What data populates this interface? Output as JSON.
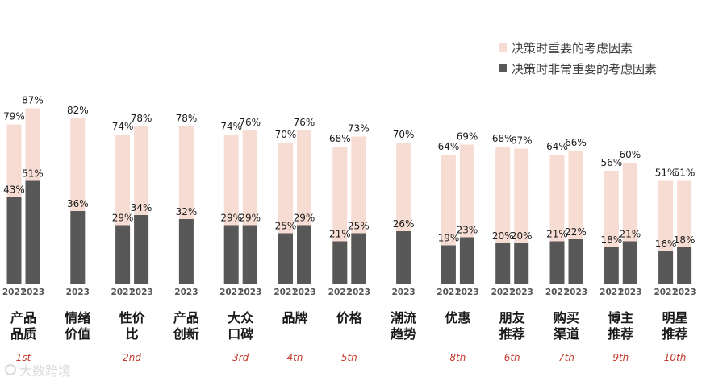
{
  "chart_data": {
    "type": "bar",
    "legend": [
      {
        "name": "决策时重要的考虑因素",
        "color": "#f7dcd3"
      },
      {
        "name": "决策时非常重要的考虑因素",
        "color": "#585858"
      }
    ],
    "ylim": [
      0,
      100
    ],
    "categories": [
      {
        "label": [
          "产品",
          "品质"
        ],
        "rank": "1st",
        "bars": [
          {
            "year": "2021",
            "important": 79,
            "very_important": 43
          },
          {
            "year": "2023",
            "important": 87,
            "very_important": 51
          }
        ]
      },
      {
        "label": [
          "情绪",
          "价值"
        ],
        "rank": "-",
        "bars": [
          {
            "year": "2023",
            "important": 82,
            "very_important": 36
          }
        ]
      },
      {
        "label": [
          "性价",
          "比"
        ],
        "rank": "2nd",
        "bars": [
          {
            "year": "2021",
            "important": 74,
            "very_important": 29
          },
          {
            "year": "2023",
            "important": 78,
            "very_important": 34
          }
        ]
      },
      {
        "label": [
          "产品",
          "创新"
        ],
        "rank": "",
        "bars": [
          {
            "year": "2023",
            "important": 78,
            "very_important": 32
          }
        ]
      },
      {
        "label": [
          "大众",
          "口碑"
        ],
        "rank": "3rd",
        "bars": [
          {
            "year": "2021",
            "important": 74,
            "very_important": 29
          },
          {
            "year": "2023",
            "important": 76,
            "very_important": 29
          }
        ]
      },
      {
        "label": [
          "品牌"
        ],
        "rank": "4th",
        "bars": [
          {
            "year": "2021",
            "important": 70,
            "very_important": 25
          },
          {
            "year": "2023",
            "important": 76,
            "very_important": 29
          }
        ]
      },
      {
        "label": [
          "价格"
        ],
        "rank": "5th",
        "bars": [
          {
            "year": "2021",
            "important": 68,
            "very_important": 21
          },
          {
            "year": "2023",
            "important": 73,
            "very_important": 25
          }
        ]
      },
      {
        "label": [
          "潮流",
          "趋势"
        ],
        "rank": "-",
        "bars": [
          {
            "year": "2023",
            "important": 70,
            "very_important": 26
          }
        ]
      },
      {
        "label": [
          "优惠"
        ],
        "rank": "8th",
        "bars": [
          {
            "year": "2021",
            "important": 64,
            "very_important": 19
          },
          {
            "year": "2023",
            "important": 69,
            "very_important": 23
          }
        ]
      },
      {
        "label": [
          "朋友",
          "推荐"
        ],
        "rank": "6th",
        "bars": [
          {
            "year": "2021",
            "important": 68,
            "very_important": 20
          },
          {
            "year": "2023",
            "important": 67,
            "very_important": 20
          }
        ]
      },
      {
        "label": [
          "购买",
          "渠道"
        ],
        "rank": "7th",
        "bars": [
          {
            "year": "2021",
            "important": 64,
            "very_important": 21
          },
          {
            "year": "2023",
            "important": 66,
            "very_important": 22
          }
        ]
      },
      {
        "label": [
          "博主",
          "推荐"
        ],
        "rank": "9th",
        "bars": [
          {
            "year": "2021",
            "important": 56,
            "very_important": 18
          },
          {
            "year": "2023",
            "important": 60,
            "very_important": 21
          }
        ]
      },
      {
        "label": [
          "明星",
          "推荐"
        ],
        "rank": "10th",
        "bars": [
          {
            "year": "2021",
            "important": 51,
            "very_important": 16
          },
          {
            "year": "2023",
            "important": 51,
            "very_important": 18
          }
        ]
      }
    ]
  },
  "watermark": "大数跨境"
}
